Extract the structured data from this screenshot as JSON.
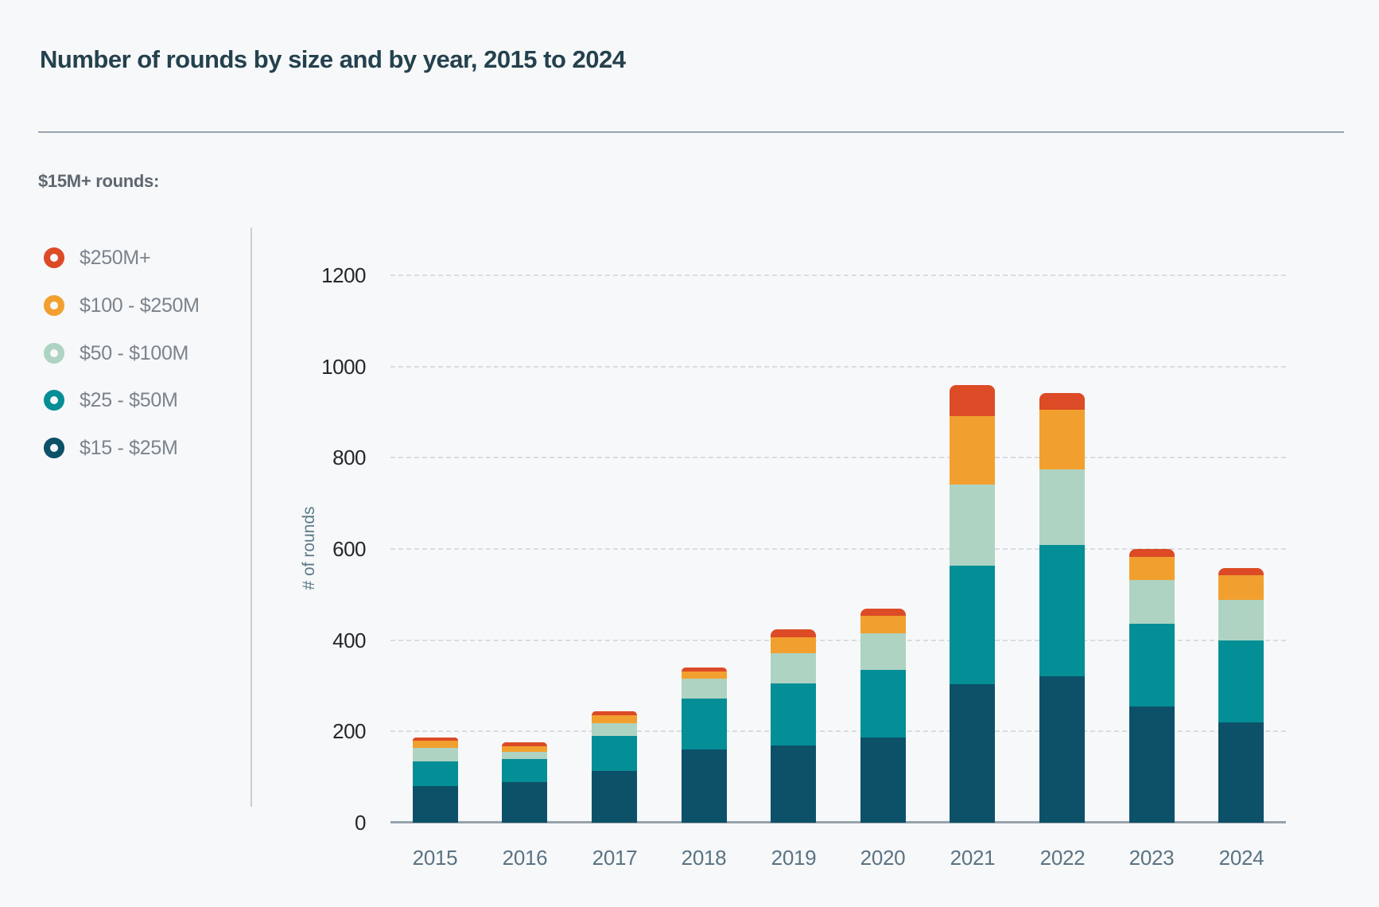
{
  "page": {
    "title": "Number of rounds by size and by year, 2015 to 2024",
    "background": "#f7f8f9"
  },
  "legend": {
    "header": "$15M+ rounds:",
    "items": [
      {
        "label": "$250M+",
        "color": "#dc4b26"
      },
      {
        "label": "$100 - $250M",
        "color": "#f1a02f"
      },
      {
        "label": "$50 - $100M",
        "color": "#aed3c2"
      },
      {
        "label": "$25 - $50M",
        "color": "#048e96"
      },
      {
        "label": "$15 - $25M",
        "color": "#0d5168"
      }
    ]
  },
  "chart_data": {
    "type": "bar",
    "stacked": true,
    "title": "Number of rounds by size and by year, 2015 to 2024",
    "categories": [
      "2015",
      "2016",
      "2017",
      "2018",
      "2019",
      "2020",
      "2021",
      "2022",
      "2023",
      "2024"
    ],
    "series": [
      {
        "name": "$15 - $25M",
        "color": "#0d5168",
        "values": [
          80,
          89,
          113,
          160,
          169,
          187,
          304,
          321,
          255,
          220
        ]
      },
      {
        "name": "$25 - $50M",
        "color": "#048e96",
        "values": [
          54,
          51,
          77,
          112,
          136,
          148,
          259,
          288,
          181,
          180
        ]
      },
      {
        "name": "$50 - $100M",
        "color": "#aed3c2",
        "values": [
          30,
          16,
          28,
          44,
          67,
          80,
          178,
          166,
          96,
          89
        ]
      },
      {
        "name": "$100 - $250M",
        "color": "#f1a02f",
        "values": [
          16,
          12,
          18,
          16,
          34,
          39,
          150,
          130,
          51,
          54
        ]
      },
      {
        "name": "$250M+",
        "color": "#dc4b26",
        "values": [
          7,
          8,
          8,
          9,
          18,
          15,
          68,
          37,
          17,
          15
        ]
      }
    ],
    "xlabel": "",
    "ylabel": "# of rounds",
    "ylim": [
      0,
      1200
    ],
    "yticks": [
      0,
      200,
      400,
      600,
      800,
      1000,
      1200
    ],
    "grid": "horizontal-dashed",
    "legend_position": "left"
  }
}
